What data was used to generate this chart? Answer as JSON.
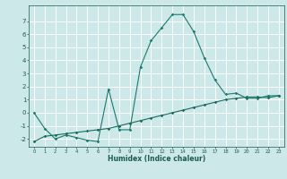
{
  "xlabel": "Humidex (Indice chaleur)",
  "background_color": "#cde8e8",
  "grid_color": "#ffffff",
  "line_color": "#1a7a6e",
  "line_color2": "#1a6a5e",
  "xlim": [
    -0.5,
    23.5
  ],
  "ylim": [
    -2.6,
    8.2
  ],
  "yticks": [
    -2,
    -1,
    0,
    1,
    2,
    3,
    4,
    5,
    6,
    7
  ],
  "xticks": [
    0,
    1,
    2,
    3,
    4,
    5,
    6,
    7,
    8,
    9,
    10,
    11,
    12,
    13,
    14,
    15,
    16,
    17,
    18,
    19,
    20,
    21,
    22,
    23
  ],
  "curve1_x": [
    0,
    1,
    2,
    3,
    4,
    5,
    6,
    7,
    8,
    9,
    10,
    11,
    12,
    13,
    14,
    15,
    16,
    17,
    18,
    19,
    20,
    21,
    22,
    23
  ],
  "curve1_y": [
    0.0,
    -1.2,
    -2.0,
    -1.7,
    -1.9,
    -2.1,
    -2.2,
    1.8,
    -1.3,
    -1.3,
    3.5,
    5.5,
    6.5,
    7.5,
    7.5,
    6.2,
    4.2,
    2.5,
    1.4,
    1.5,
    1.1,
    1.1,
    1.3,
    1.3
  ],
  "curve2_x": [
    0,
    1,
    2,
    3,
    4,
    5,
    6,
    7,
    8,
    9,
    10,
    11,
    12,
    13,
    14,
    15,
    16,
    17,
    18,
    19,
    20,
    21,
    22,
    23
  ],
  "curve2_y": [
    -2.2,
    -1.8,
    -1.7,
    -1.6,
    -1.5,
    -1.4,
    -1.3,
    -1.2,
    -1.0,
    -0.8,
    -0.6,
    -0.4,
    -0.2,
    0.0,
    0.2,
    0.4,
    0.6,
    0.8,
    1.0,
    1.1,
    1.2,
    1.2,
    1.15,
    1.3
  ]
}
